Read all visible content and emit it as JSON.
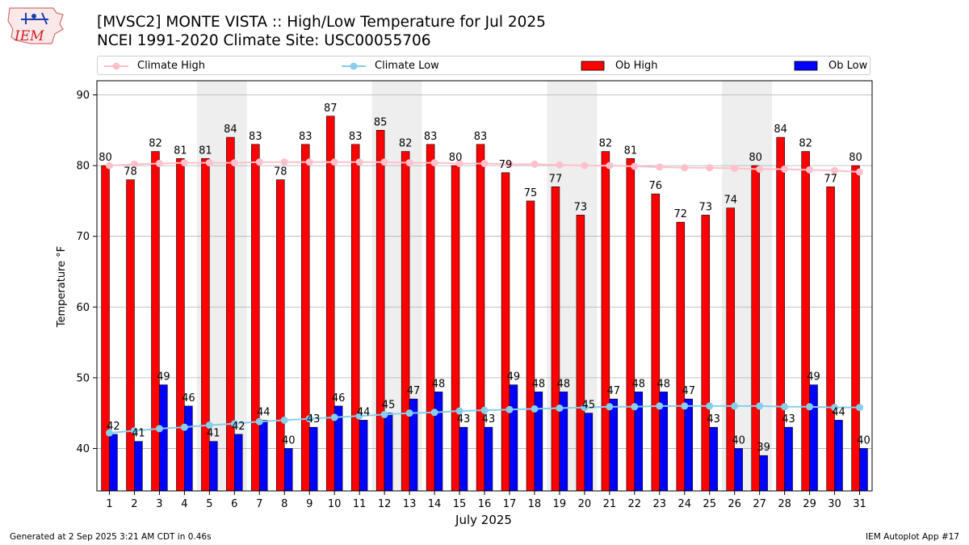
{
  "header": {
    "title_line1": "[MVSC2] MONTE VISTA :: High/Low Temperature for Jul 2025",
    "title_line2": "NCEI 1991-2020 Climate Site: USC00055706",
    "logo_text": "IEM"
  },
  "footer": {
    "generated": "Generated at 2 Sep 2025 3:21 AM CDT in 0.46s",
    "app": "IEM Autoplot App #17"
  },
  "colors": {
    "ob_high": "#ff0000",
    "ob_low": "#0000ff",
    "climate_high": "#ffc0cb",
    "climate_low": "#87ceeb",
    "weekend_shade": "#eeeeee",
    "grid": "#b0b0b0"
  },
  "chart_data": {
    "type": "bar",
    "title": "[MVSC2] MONTE VISTA :: High/Low Temperature for Jul 2025",
    "subtitle": "NCEI 1991-2020 Climate Site: USC00055706",
    "xlabel": "July 2025",
    "ylabel": "Temperature °F",
    "ylim": [
      34,
      92
    ],
    "yticks": [
      40,
      50,
      60,
      70,
      80,
      90
    ],
    "grid": true,
    "legend_position": "top",
    "categories": [
      1,
      2,
      3,
      4,
      5,
      6,
      7,
      8,
      9,
      10,
      11,
      12,
      13,
      14,
      15,
      16,
      17,
      18,
      19,
      20,
      21,
      22,
      23,
      24,
      25,
      26,
      27,
      28,
      29,
      30,
      31
    ],
    "shaded_days": [
      [
        5,
        6
      ],
      [
        12,
        13
      ],
      [
        19,
        20
      ],
      [
        26,
        27
      ]
    ],
    "series": [
      {
        "name": "Climate High",
        "kind": "line",
        "values": [
          80.0,
          80.2,
          80.3,
          80.4,
          80.4,
          80.4,
          80.5,
          80.5,
          80.5,
          80.5,
          80.5,
          80.5,
          80.4,
          80.4,
          80.3,
          80.3,
          80.2,
          80.2,
          80.1,
          80.0,
          80.0,
          79.9,
          79.8,
          79.7,
          79.7,
          79.6,
          79.5,
          79.5,
          79.4,
          79.3,
          79.1
        ]
      },
      {
        "name": "Climate Low",
        "kind": "line",
        "values": [
          42.2,
          42.5,
          42.8,
          43.0,
          43.3,
          43.5,
          43.8,
          44.0,
          44.2,
          44.4,
          44.6,
          44.8,
          45.0,
          45.1,
          45.3,
          45.4,
          45.5,
          45.6,
          45.7,
          45.8,
          45.9,
          45.9,
          46.0,
          46.0,
          46.0,
          46.0,
          46.0,
          45.9,
          45.9,
          45.8,
          45.8
        ]
      },
      {
        "name": "Ob High",
        "kind": "bar",
        "values": [
          80,
          78,
          82,
          81,
          81,
          84,
          83,
          78,
          83,
          87,
          83,
          85,
          82,
          83,
          80,
          83,
          79,
          75,
          77,
          73,
          82,
          81,
          76,
          72,
          73,
          74,
          80,
          84,
          82,
          77,
          80
        ]
      },
      {
        "name": "Ob Low",
        "kind": "bar",
        "values": [
          42,
          41,
          49,
          46,
          41,
          42,
          44,
          40,
          43,
          46,
          44,
          45,
          47,
          48,
          43,
          43,
          49,
          48,
          48,
          45,
          47,
          48,
          48,
          47,
          43,
          40,
          39,
          43,
          49,
          44,
          40
        ]
      }
    ]
  }
}
